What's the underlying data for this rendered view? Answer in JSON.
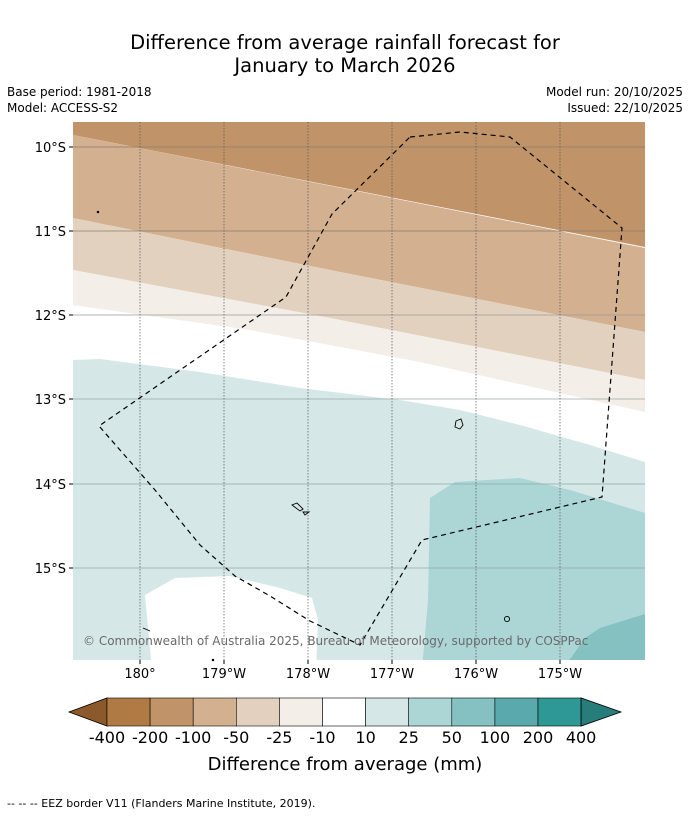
{
  "title_line1": "Difference from average rainfall forecast for",
  "title_line2": "January to March 2026",
  "base_period": "Base period: 1981-2018",
  "model": "Model: ACCESS-S2",
  "model_run": "Model run: 20/10/2025",
  "issued": "Issued: 22/10/2025",
  "map": {
    "lat_labels": [
      "10°S",
      "11°S",
      "12°S",
      "13°S",
      "14°S",
      "15°S"
    ],
    "lon_labels": [
      "180°",
      "179°W",
      "178°W",
      "177°W",
      "176°W",
      "175°W"
    ],
    "copyright": "© Commonwealth of Australia 2025, Bureau of Meteorology, supported by COSPPac"
  },
  "colorbar": {
    "labels": [
      "-400",
      "-200",
      "-100",
      "-50",
      "-25",
      "-10",
      "10",
      "25",
      "50",
      "100",
      "200",
      "400"
    ],
    "colors": [
      "#8c5a2a",
      "#b07a44",
      "#c09468",
      "#d3b08f",
      "#e3d1bf",
      "#f3eee8",
      "#ffffff",
      "#d5e8e7",
      "#acd5d6",
      "#86c1c2",
      "#5aaaad",
      "#2e9895",
      "#287c7a"
    ],
    "title": "Difference from average (mm)"
  },
  "footnote": "--  --  -- EEZ border V11 (Flanders Marine Institute, 2019)."
}
